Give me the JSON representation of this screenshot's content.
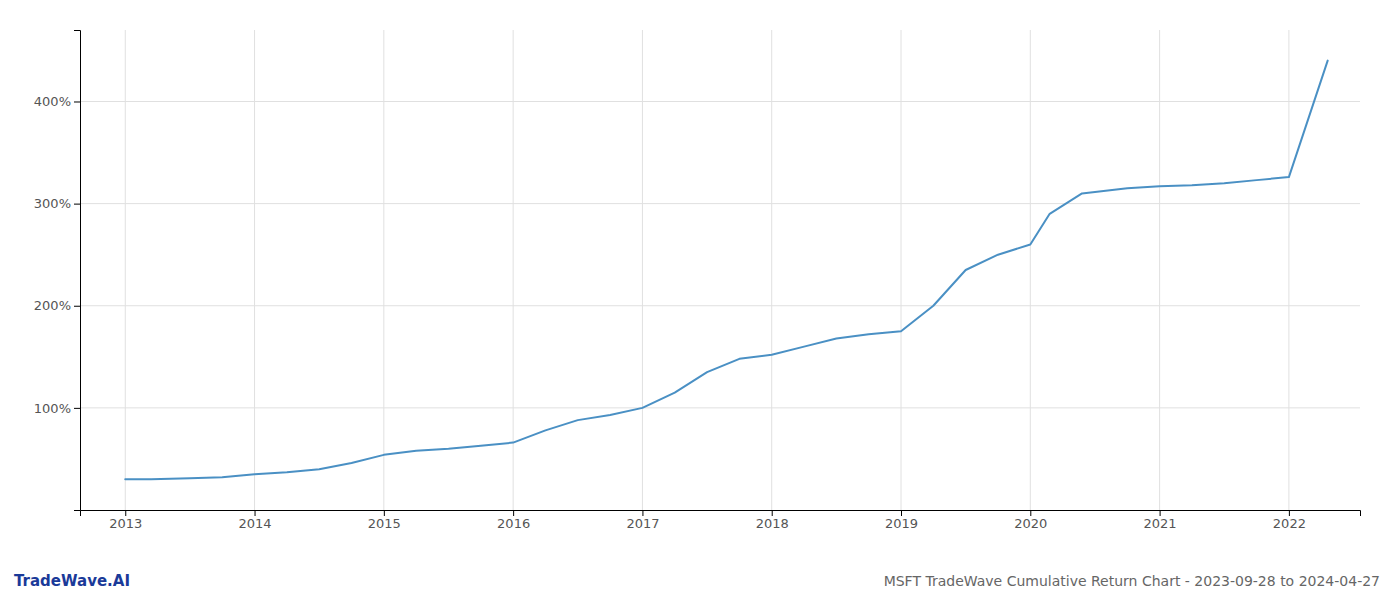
{
  "chart_data": {
    "type": "line",
    "title": "MSFT TradeWave Cumulative Return Chart - 2023-09-28 to 2024-04-27",
    "annotations": [
      "TradeWave.AI"
    ],
    "color": "#4a90c4",
    "x": [
      2013.0,
      2013.2,
      2013.5,
      2013.75,
      2014.0,
      2014.25,
      2014.5,
      2014.75,
      2015.0,
      2015.25,
      2015.5,
      2015.75,
      2016.0,
      2016.25,
      2016.5,
      2016.75,
      2017.0,
      2017.25,
      2017.5,
      2017.75,
      2018.0,
      2018.25,
      2018.5,
      2018.75,
      2019.0,
      2019.25,
      2019.5,
      2019.75,
      2020.0,
      2020.15,
      2020.4,
      2020.75,
      2021.0,
      2021.25,
      2021.5,
      2021.75,
      2022.0,
      2022.3
    ],
    "values": [
      30,
      30,
      31,
      32,
      35,
      37,
      40,
      46,
      54,
      58,
      60,
      63,
      66,
      78,
      88,
      93,
      100,
      115,
      135,
      148,
      152,
      160,
      168,
      172,
      175,
      200,
      235,
      250,
      260,
      290,
      310,
      315,
      317,
      318,
      320,
      323,
      326,
      440
    ],
    "xlim": [
      2012.65,
      2022.55
    ],
    "xticks": [
      2013,
      2014,
      2015,
      2016,
      2017,
      2018,
      2019,
      2020,
      2021,
      2022
    ],
    "ylim": [
      0,
      470
    ],
    "yticks": [
      {
        "value": 100,
        "label": "100%"
      },
      {
        "value": 200,
        "label": "200%"
      },
      {
        "value": 300,
        "label": "300%"
      },
      {
        "value": 400,
        "label": "400%"
      }
    ],
    "grid": true
  }
}
